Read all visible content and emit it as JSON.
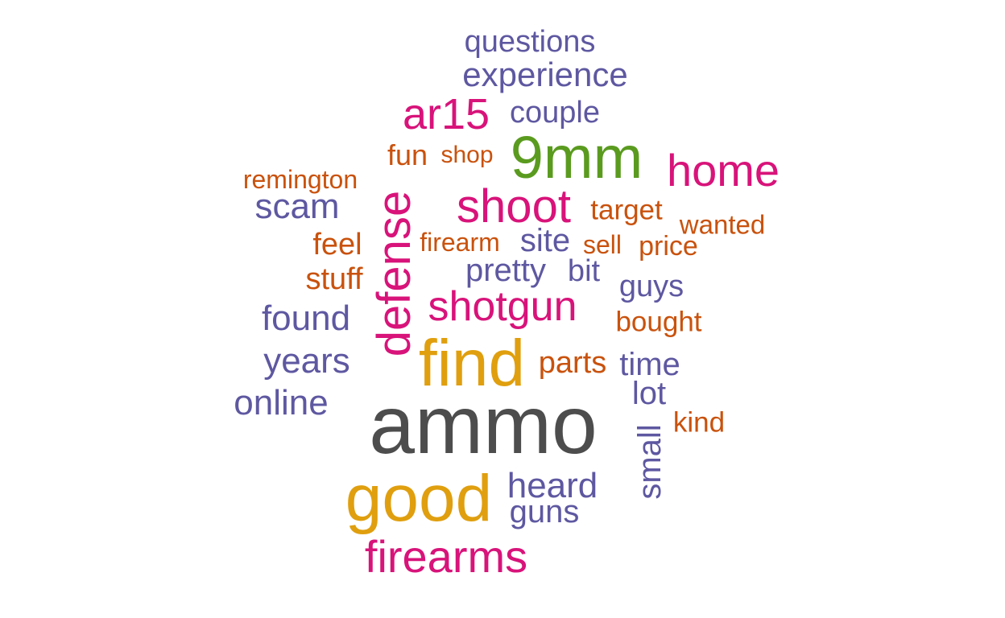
{
  "palette": {
    "dark_gray": "#4d4d4d",
    "gold": "#e09f0e",
    "magenta": "#d8137a",
    "green": "#5a9b1f",
    "purple": "#5e58a1",
    "orange": "#c9520d"
  },
  "words": [
    {
      "text": "questions",
      "color": "#5e58a1"
    },
    {
      "text": "experience",
      "color": "#5e58a1"
    },
    {
      "text": "ar15",
      "color": "#d8137a"
    },
    {
      "text": "couple",
      "color": "#5e58a1"
    },
    {
      "text": "fun",
      "color": "#c9520d"
    },
    {
      "text": "shop",
      "color": "#c9520d"
    },
    {
      "text": "9mm",
      "color": "#5a9b1f"
    },
    {
      "text": "home",
      "color": "#d8137a"
    },
    {
      "text": "remington",
      "color": "#c9520d"
    },
    {
      "text": "scam",
      "color": "#5e58a1"
    },
    {
      "text": "defense",
      "color": "#d8137a",
      "rotated": true
    },
    {
      "text": "shoot",
      "color": "#d8137a"
    },
    {
      "text": "target",
      "color": "#c9520d"
    },
    {
      "text": "wanted",
      "color": "#c9520d"
    },
    {
      "text": "feel",
      "color": "#c9520d"
    },
    {
      "text": "firearm",
      "color": "#c9520d"
    },
    {
      "text": "site",
      "color": "#5e58a1"
    },
    {
      "text": "sell",
      "color": "#c9520d"
    },
    {
      "text": "price",
      "color": "#c9520d"
    },
    {
      "text": "stuff",
      "color": "#c9520d"
    },
    {
      "text": "pretty",
      "color": "#5e58a1"
    },
    {
      "text": "bit",
      "color": "#5e58a1"
    },
    {
      "text": "guys",
      "color": "#5e58a1"
    },
    {
      "text": "shotgun",
      "color": "#d8137a"
    },
    {
      "text": "found",
      "color": "#5e58a1"
    },
    {
      "text": "bought",
      "color": "#c9520d"
    },
    {
      "text": "years",
      "color": "#5e58a1"
    },
    {
      "text": "find",
      "color": "#e09f0e"
    },
    {
      "text": "parts",
      "color": "#c9520d"
    },
    {
      "text": "time",
      "color": "#5e58a1"
    },
    {
      "text": "lot",
      "color": "#5e58a1"
    },
    {
      "text": "online",
      "color": "#5e58a1"
    },
    {
      "text": "ammo",
      "color": "#4d4d4d"
    },
    {
      "text": "kind",
      "color": "#c9520d"
    },
    {
      "text": "small",
      "color": "#5e58a1",
      "rotated": true
    },
    {
      "text": "good",
      "color": "#e09f0e"
    },
    {
      "text": "heard",
      "color": "#5e58a1"
    },
    {
      "text": "guns",
      "color": "#5e58a1"
    },
    {
      "text": "firearms",
      "color": "#d8137a"
    }
  ]
}
